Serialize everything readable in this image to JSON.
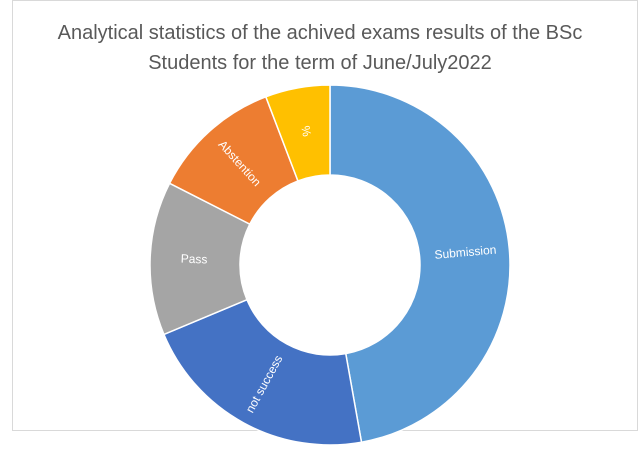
{
  "chart_data": {
    "type": "donut",
    "title": "Analytical statistics of the achived exams results of the BSc Students for the term of June/July2022",
    "categories": [
      "Submission",
      "not success",
      "Pass",
      "Abstention",
      "%"
    ],
    "values": [
      47.2,
      21.5,
      13.8,
      11.7,
      5.8
    ],
    "colors": [
      "#5b9bd5",
      "#4472c4",
      "#a5a5a5",
      "#ed7d31",
      "#ffc000"
    ]
  }
}
